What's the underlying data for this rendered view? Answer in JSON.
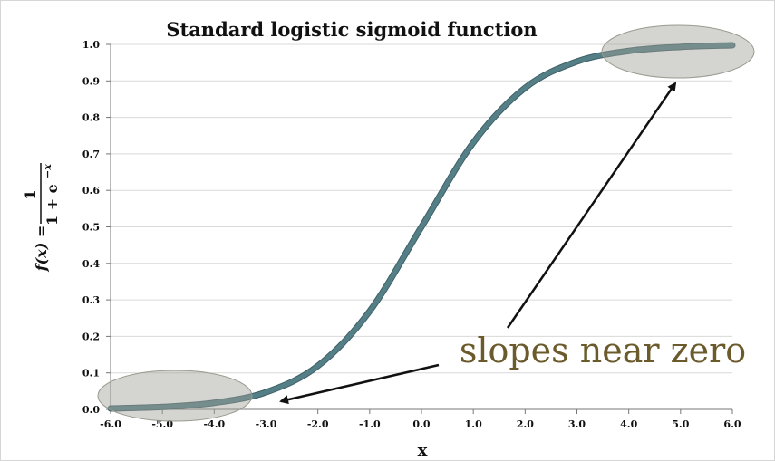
{
  "chart_data": {
    "type": "line",
    "title": "Standard logistic sigmoid function",
    "xlabel": "x",
    "ylabel": {
      "lhs": "f(x) =",
      "numerator": "1",
      "denominator": "1 + e",
      "exponent": "−x"
    },
    "xlim": [
      -6.0,
      6.0
    ],
    "ylim": [
      0.0,
      1.0
    ],
    "x_ticks": [
      "-6.0",
      "-5.0",
      "-4.0",
      "-3.0",
      "-2.0",
      "-1.0",
      "0.0",
      "1.0",
      "2.0",
      "3.0",
      "4.0",
      "5.0",
      "6.0"
    ],
    "y_ticks": [
      "0.0",
      "0.1",
      "0.2",
      "0.3",
      "0.4",
      "0.5",
      "0.6",
      "0.7",
      "0.8",
      "0.9",
      "1.0"
    ],
    "grid": true,
    "series": [
      {
        "x": [
          -6.0,
          -5.0,
          -4.0,
          -3.0,
          -2.0,
          -1.0,
          0.0,
          1.0,
          2.0,
          3.0,
          4.0,
          5.0,
          6.0
        ],
        "y": [
          0.0025,
          0.0067,
          0.018,
          0.047,
          0.119,
          0.269,
          0.5,
          0.731,
          0.881,
          0.953,
          0.982,
          0.993,
          0.9975
        ],
        "color": "#557f86"
      }
    ],
    "annotation": {
      "text": "slopes near zero",
      "color": "#6b5a2b"
    },
    "highlight_regions": [
      {
        "near": "lower-left"
      },
      {
        "near": "upper-right"
      }
    ]
  }
}
